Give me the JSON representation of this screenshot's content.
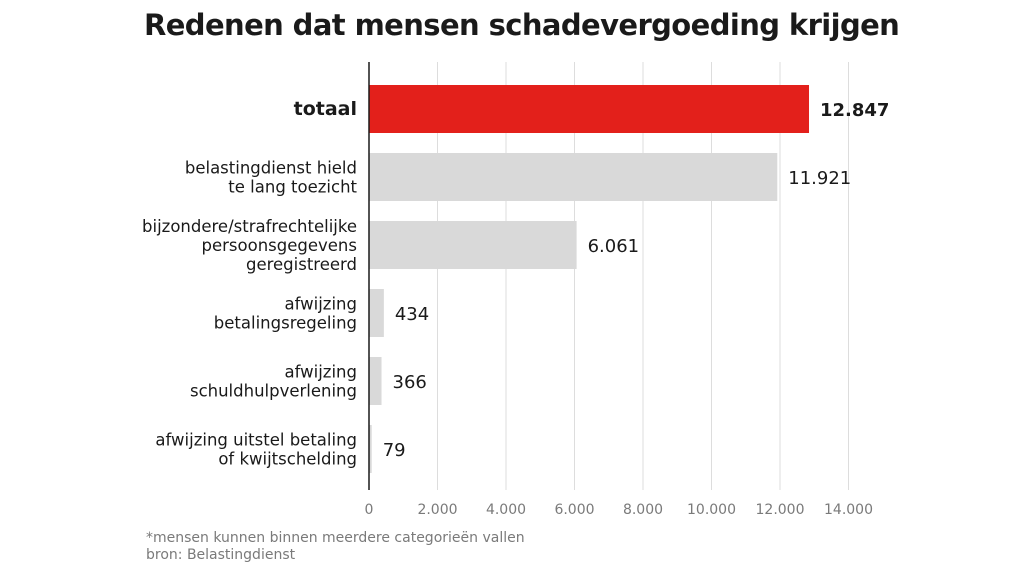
{
  "chart_data": {
    "type": "bar",
    "orientation": "horizontal",
    "title": "Redenen dat mensen schadevergoeding krijgen",
    "categories": [
      "totaal",
      "belastingdienst hield te lang toezicht",
      "bijzondere/strafrechtelijke persoonsgegevens geregistreerd",
      "afwijzing betalingsregeling",
      "afwijzing schuldhulpverlening",
      "afwijzing uitstel betaling of kwijtschelding"
    ],
    "category_lines": [
      [
        "totaal"
      ],
      [
        "belastingdienst hield",
        "te lang toezicht"
      ],
      [
        "bijzondere/strafrechtelijke",
        "persoonsgegevens",
        "geregistreerd"
      ],
      [
        "afwijzing",
        "betalingsregeling"
      ],
      [
        "afwijzing",
        "schuldhulpverlening"
      ],
      [
        "afwijzing uitstel betaling",
        "of kwijtschelding"
      ]
    ],
    "values": [
      12847,
      11921,
      6061,
      434,
      366,
      79
    ],
    "value_labels": [
      "12.847",
      "11.921",
      "6.061",
      "434",
      "366",
      "79"
    ],
    "highlight_index": 0,
    "xlim": [
      0,
      14000
    ],
    "xticks": [
      0,
      2000,
      4000,
      6000,
      8000,
      10000,
      12000,
      14000
    ],
    "xtick_labels": [
      "0",
      "2.000",
      "4.000",
      "6.000",
      "8.000",
      "10.000",
      "12.000",
      "14.000"
    ],
    "grid": true,
    "colors": {
      "highlight": "#e3201b",
      "default": "#d9d9d9",
      "grid": "#dddddd",
      "axis": "#1a1a1a"
    }
  },
  "footnotes": {
    "note": "*mensen kunnen binnen meerdere categorieën vallen",
    "source": "bron: Belastingdienst"
  }
}
